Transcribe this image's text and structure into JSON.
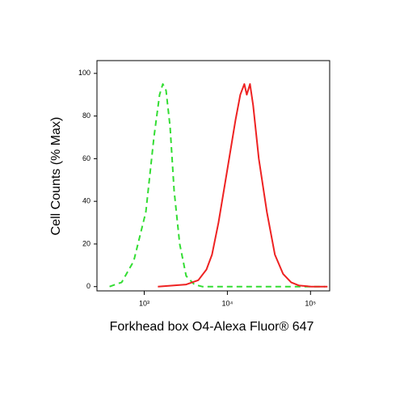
{
  "chart_data": {
    "type": "line",
    "xlabel": "Forkhead box O4-Alexa Fluor® 647",
    "ylabel": "Cell Counts (% Max)",
    "xscale": "log",
    "xlim": [
      270,
      170000
    ],
    "ylim": [
      -2,
      106
    ],
    "xticks": [
      {
        "value": 1000,
        "label": "10³"
      },
      {
        "value": 10000,
        "label": "10⁴"
      },
      {
        "value": 100000,
        "label": "10⁵"
      }
    ],
    "yticks": [
      0,
      20,
      40,
      60,
      80,
      100
    ],
    "series": [
      {
        "color": "#33dd33",
        "dash": true,
        "x": [
          383,
          535,
          748,
          1046,
          1308,
          1529,
          1672,
          1829,
          2045,
          2286,
          2672,
          3195,
          4000,
          5000,
          10000,
          50000,
          150000
        ],
        "values": [
          0,
          2,
          12,
          35,
          70,
          90,
          95,
          92,
          75,
          45,
          20,
          5,
          1,
          0,
          0,
          0,
          0
        ]
      },
      {
        "color": "#ee2222",
        "dash": false,
        "x": [
          1460,
          3195,
          4470,
          5600,
          6540,
          7820,
          10000,
          12500,
          14300,
          16000,
          17100,
          18700,
          20400,
          23900,
          29900,
          37300,
          46700,
          58400,
          73000,
          101800,
          160000
        ],
        "values": [
          0,
          1,
          3,
          8,
          15,
          30,
          55,
          78,
          90,
          95,
          90,
          95,
          85,
          60,
          35,
          15,
          6,
          2,
          0.5,
          0,
          0
        ]
      }
    ]
  }
}
